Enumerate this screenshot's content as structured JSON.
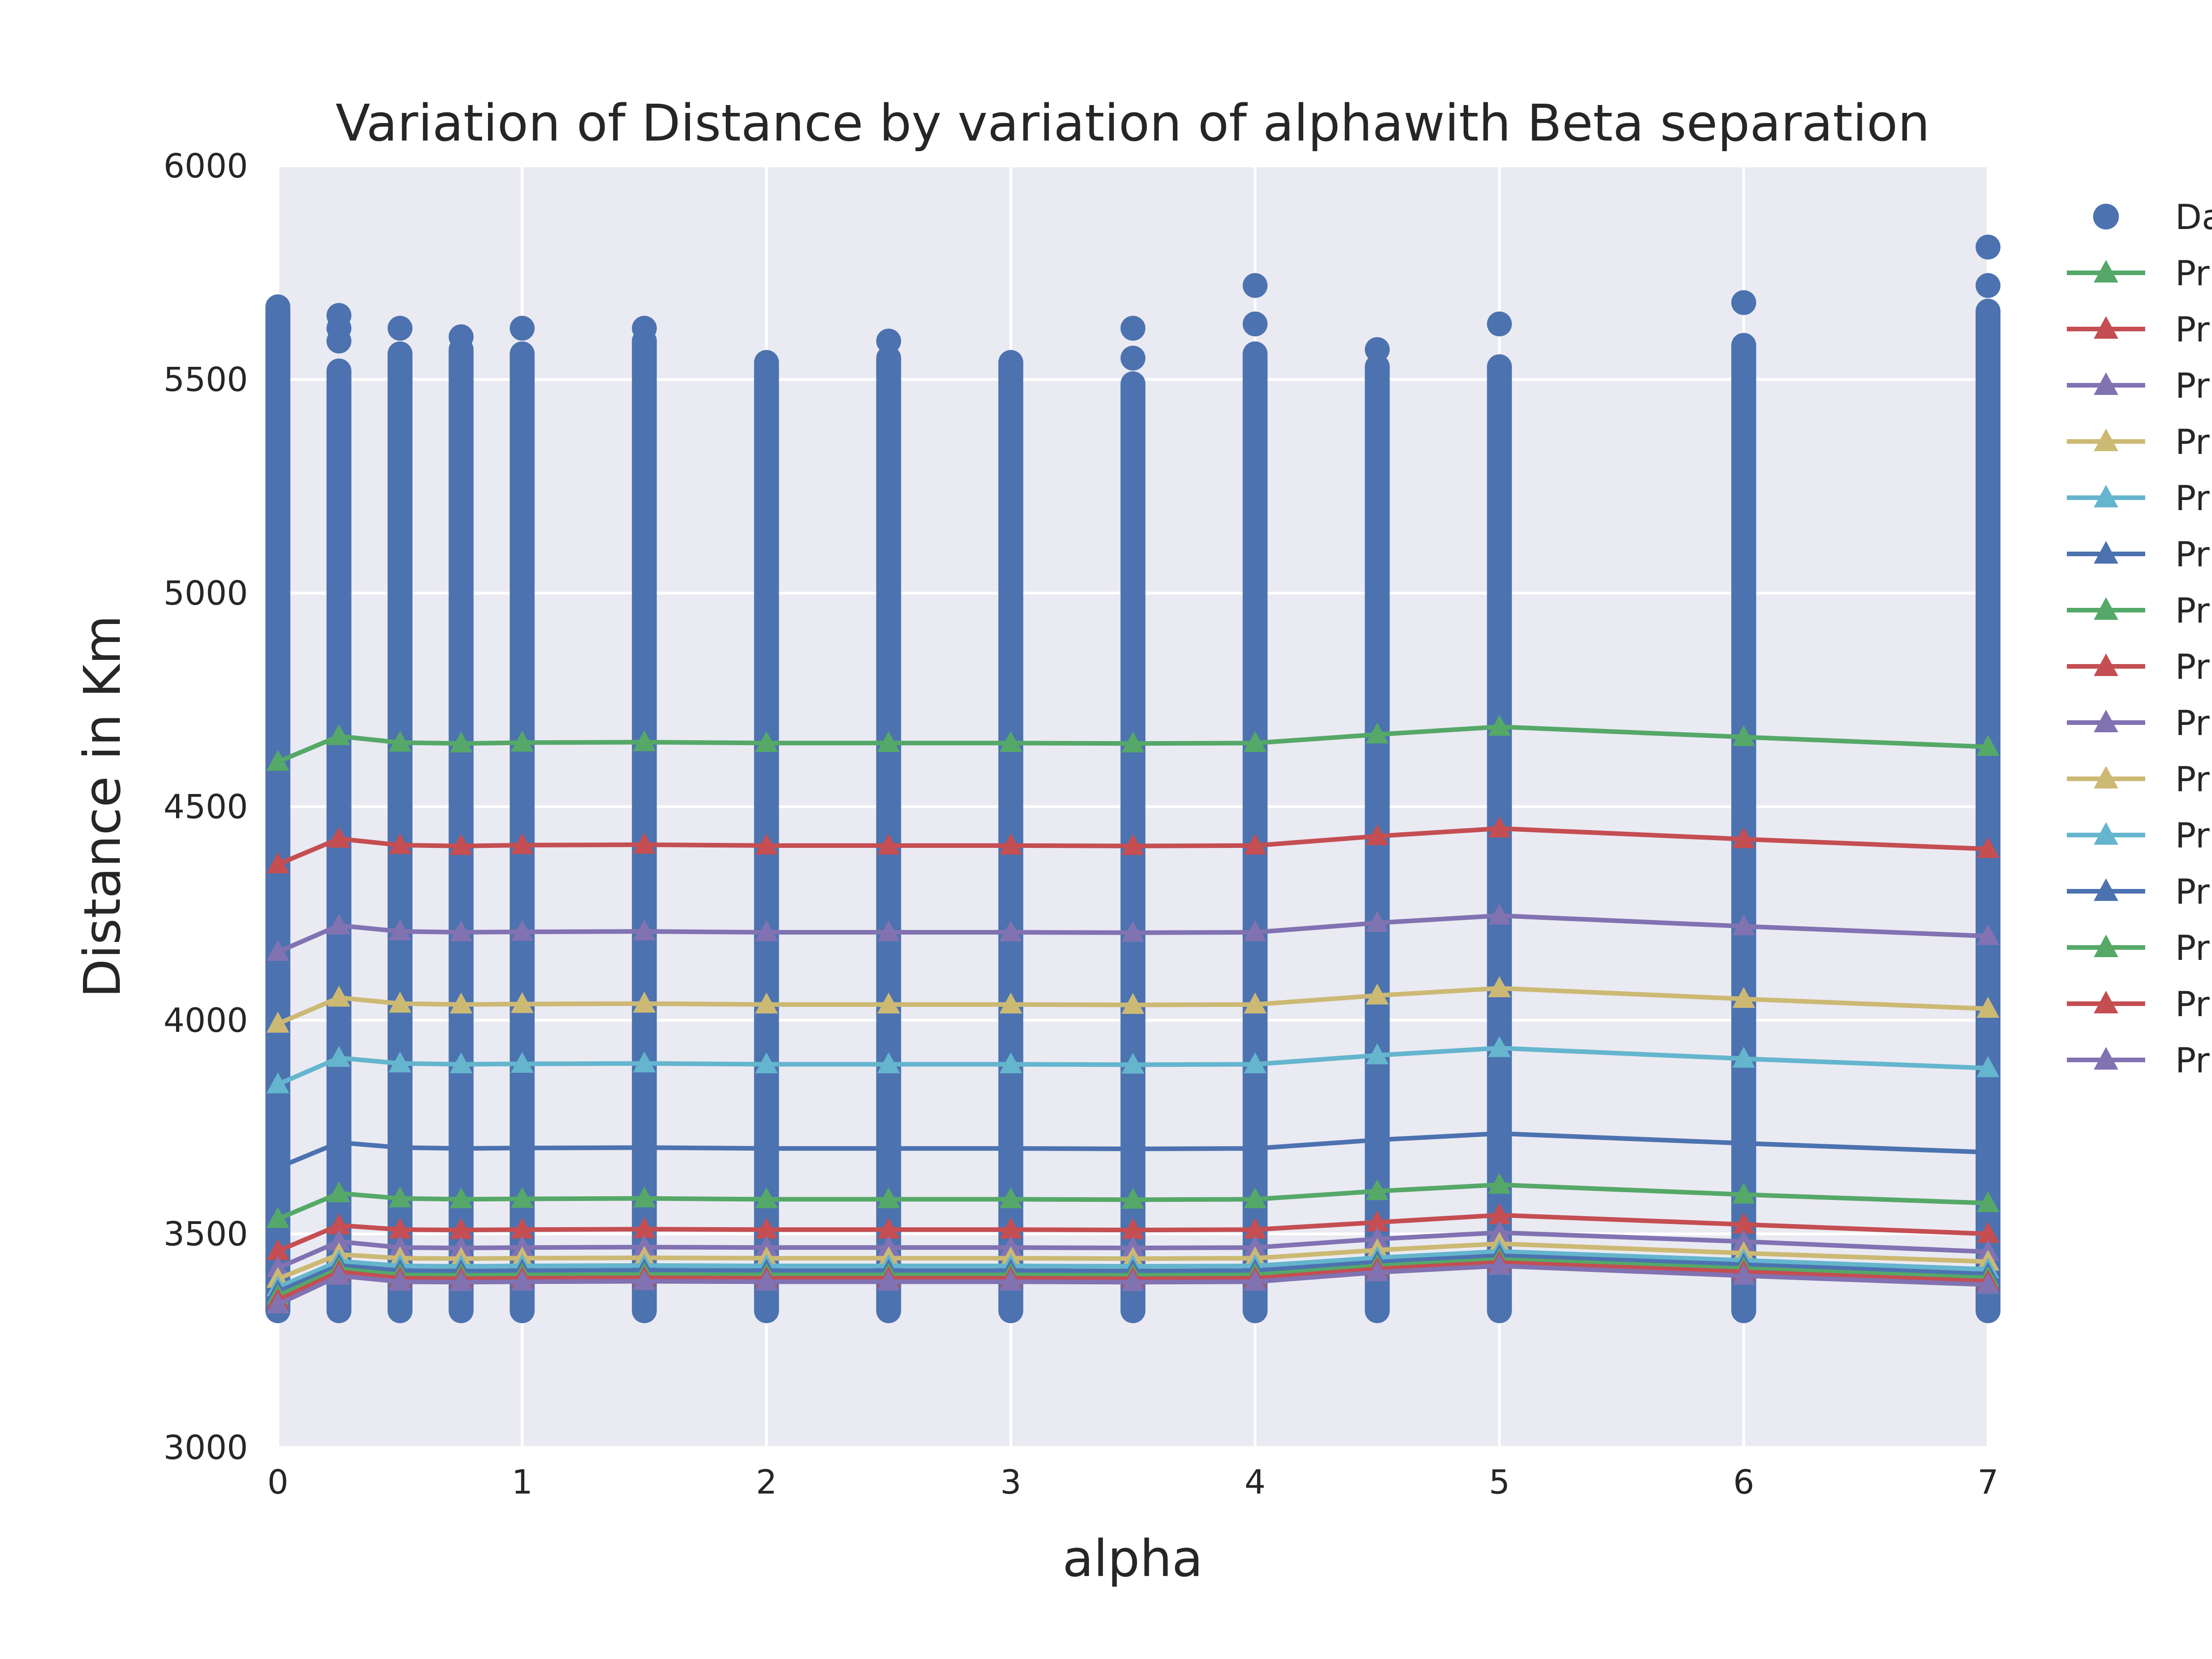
{
  "chart_data": {
    "type": "line",
    "title": "Variation of  Distance by variation of alphawith Beta separation",
    "xlabel": "alpha",
    "ylabel": "Distance in Km",
    "xlim": [
      0,
      7
    ],
    "ylim": [
      3000,
      6000
    ],
    "xticks": [
      0,
      1,
      2,
      3,
      4,
      5,
      6,
      7
    ],
    "yticks": [
      3000,
      3500,
      4000,
      4500,
      5000,
      5500,
      6000
    ],
    "grid": true,
    "legend_position": "outside-right",
    "colors": {
      "background": "#eaeaf2",
      "grid": "#ffffff",
      "blue": "#4c72b0",
      "green": "#55a868",
      "red": "#c44e52",
      "purple": "#8172b2",
      "yellow": "#ccb974",
      "cyan": "#64b5cd"
    },
    "x": [
      0,
      0.25,
      0.5,
      0.75,
      1,
      1.5,
      2,
      2.5,
      3,
      3.5,
      4,
      4.5,
      5,
      6,
      7
    ],
    "scatter": {
      "legend_label": "Da",
      "color": "#4c72b0",
      "columns": [
        {
          "x": 0,
          "min": 3320,
          "max": 5670,
          "outliers": [
            5670,
            5640,
            5610
          ]
        },
        {
          "x": 0.25,
          "min": 3320,
          "max": 5520,
          "outliers": [
            5650,
            5620,
            5590
          ]
        },
        {
          "x": 0.5,
          "min": 3320,
          "max": 5560,
          "outliers": [
            5620
          ]
        },
        {
          "x": 0.75,
          "min": 3320,
          "max": 5570,
          "outliers": [
            5600
          ]
        },
        {
          "x": 1,
          "min": 3320,
          "max": 5560,
          "outliers": [
            5620
          ]
        },
        {
          "x": 1.5,
          "min": 3320,
          "max": 5590,
          "outliers": [
            5620
          ]
        },
        {
          "x": 2,
          "min": 3320,
          "max": 5540,
          "outliers": []
        },
        {
          "x": 2.5,
          "min": 3320,
          "max": 5550,
          "outliers": [
            5590
          ]
        },
        {
          "x": 3,
          "min": 3320,
          "max": 5540,
          "outliers": []
        },
        {
          "x": 3.5,
          "min": 3320,
          "max": 5490,
          "outliers": [
            5620,
            5550
          ]
        },
        {
          "x": 4,
          "min": 3320,
          "max": 5560,
          "outliers": [
            5720,
            5630
          ]
        },
        {
          "x": 4.5,
          "min": 3320,
          "max": 5530,
          "outliers": [
            5570
          ]
        },
        {
          "x": 5,
          "min": 3320,
          "max": 5530,
          "outliers": [
            5630
          ]
        },
        {
          "x": 6,
          "min": 3320,
          "max": 5580,
          "outliers": [
            5680
          ]
        },
        {
          "x": 7,
          "min": 3320,
          "max": 5660,
          "outliers": [
            5810,
            5720,
            5620
          ]
        }
      ]
    },
    "series": [
      {
        "legend_label": "Pr",
        "color": "#55a868",
        "values": [
          4605,
          4665,
          4650,
          4648,
          4650,
          4651,
          4649,
          4649,
          4649,
          4648,
          4649,
          4669,
          4687,
          4663,
          4640
        ]
      },
      {
        "legend_label": "Pr",
        "color": "#c44e52",
        "values": [
          4365,
          4425,
          4410,
          4408,
          4410,
          4411,
          4409,
          4409,
          4409,
          4408,
          4409,
          4431,
          4449,
          4424,
          4401
        ]
      },
      {
        "legend_label": "Pr",
        "color": "#8172b2",
        "values": [
          4160,
          4222,
          4208,
          4206,
          4207,
          4208,
          4206,
          4206,
          4206,
          4205,
          4206,
          4228,
          4245,
          4220,
          4197
        ]
      },
      {
        "legend_label": "Pr",
        "color": "#ccb974",
        "values": [
          3992,
          4053,
          4039,
          4037,
          4038,
          4039,
          4037,
          4037,
          4037,
          4036,
          4037,
          4058,
          4075,
          4050,
          4027
        ]
      },
      {
        "legend_label": "Pr",
        "color": "#64b5cd",
        "values": [
          3850,
          3912,
          3899,
          3897,
          3898,
          3899,
          3897,
          3897,
          3897,
          3896,
          3897,
          3918,
          3935,
          3910,
          3888
        ]
      },
      {
        "legend_label": "Pr",
        "color": "#4c72b0",
        "values": [
          3655,
          3714,
          3702,
          3700,
          3701,
          3702,
          3700,
          3700,
          3700,
          3699,
          3700,
          3720,
          3735,
          3712,
          3691
        ]
      },
      {
        "legend_label": "Pr",
        "color": "#55a868",
        "values": [
          3535,
          3595,
          3583,
          3581,
          3582,
          3583,
          3581,
          3581,
          3581,
          3580,
          3581,
          3600,
          3615,
          3592,
          3572
        ]
      },
      {
        "legend_label": "Pr",
        "color": "#c44e52",
        "values": [
          3460,
          3520,
          3510,
          3509,
          3510,
          3511,
          3510,
          3510,
          3510,
          3509,
          3510,
          3527,
          3544,
          3522,
          3500
        ]
      },
      {
        "legend_label": "Pr",
        "color": "#8172b2",
        "values": [
          3420,
          3482,
          3468,
          3467,
          3468,
          3469,
          3468,
          3468,
          3468,
          3467,
          3468,
          3488,
          3503,
          3482,
          3458
        ]
      },
      {
        "legend_label": "Pr",
        "color": "#ccb974",
        "values": [
          3395,
          3452,
          3443,
          3442,
          3443,
          3444,
          3443,
          3443,
          3443,
          3442,
          3443,
          3462,
          3477,
          3455,
          3435
        ]
      },
      {
        "legend_label": "Pr",
        "color": "#64b5cd",
        "values": [
          3375,
          3436,
          3425,
          3424,
          3425,
          3426,
          3425,
          3425,
          3425,
          3424,
          3425,
          3444,
          3459,
          3438,
          3417
        ]
      },
      {
        "legend_label": "Pr",
        "color": "#4c72b0",
        "values": [
          3365,
          3426,
          3414,
          3413,
          3414,
          3415,
          3414,
          3414,
          3414,
          3413,
          3414,
          3434,
          3449,
          3428,
          3406
        ]
      },
      {
        "legend_label": "Pr",
        "color": "#55a868",
        "values": [
          3355,
          3418,
          3404,
          3403,
          3404,
          3405,
          3404,
          3404,
          3404,
          3403,
          3404,
          3425,
          3440,
          3419,
          3397
        ]
      },
      {
        "legend_label": "Pr",
        "color": "#c44e52",
        "values": [
          3345,
          3411,
          3396,
          3395,
          3396,
          3397,
          3396,
          3396,
          3396,
          3395,
          3396,
          3418,
          3433,
          3411,
          3389
        ]
      },
      {
        "legend_label": "Pr",
        "color": "#8172b2",
        "values": [
          3335,
          3402,
          3388,
          3387,
          3388,
          3389,
          3388,
          3388,
          3388,
          3387,
          3388,
          3410,
          3425,
          3402,
          3381
        ]
      }
    ]
  }
}
